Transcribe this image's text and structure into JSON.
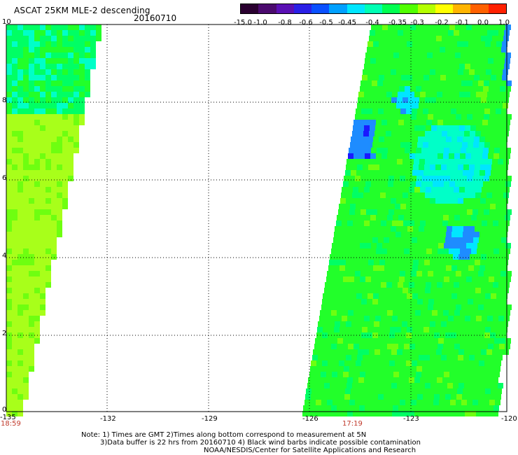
{
  "header": {
    "title": "ASCAT 25KM MLE-2 descending",
    "date": "20160710"
  },
  "colorbar": {
    "labels": [
      "-15.0",
      "-1.0",
      "-0.8",
      "-0.6",
      "-0.5",
      "-0.45",
      "-0.4",
      "-0.35",
      "-0.3",
      "-0.2",
      "-0.1",
      "0.0",
      "1.0"
    ],
    "colors": [
      "#2a0030",
      "#4b0a6e",
      "#5a10b4",
      "#2a20e6",
      "#0a50ff",
      "#00a0ff",
      "#00e6ff",
      "#00ffb4",
      "#00ff50",
      "#50ff00",
      "#b4ff00",
      "#ffff00",
      "#ffb400",
      "#ff6000",
      "#ff2000"
    ]
  },
  "axes": {
    "y_ticks": [
      "10",
      "8",
      "6",
      "4",
      "2",
      "0"
    ],
    "x_ticks": [
      "-135",
      "-132",
      "-129",
      "-126",
      "-123",
      "-120"
    ]
  },
  "times": {
    "left_pass": "18:59",
    "right_pass": "17:19"
  },
  "notes": {
    "line1": "Note: 1) Times are GMT 2)Times along bottom correspond to measurement at 5N",
    "line2": "3)Data buffer is 22 hrs from 20160710 4) Black wind barbs indicate possible contamination",
    "line3": "NOAA/NESDIS/Center for Satellite Applications and Research"
  }
}
